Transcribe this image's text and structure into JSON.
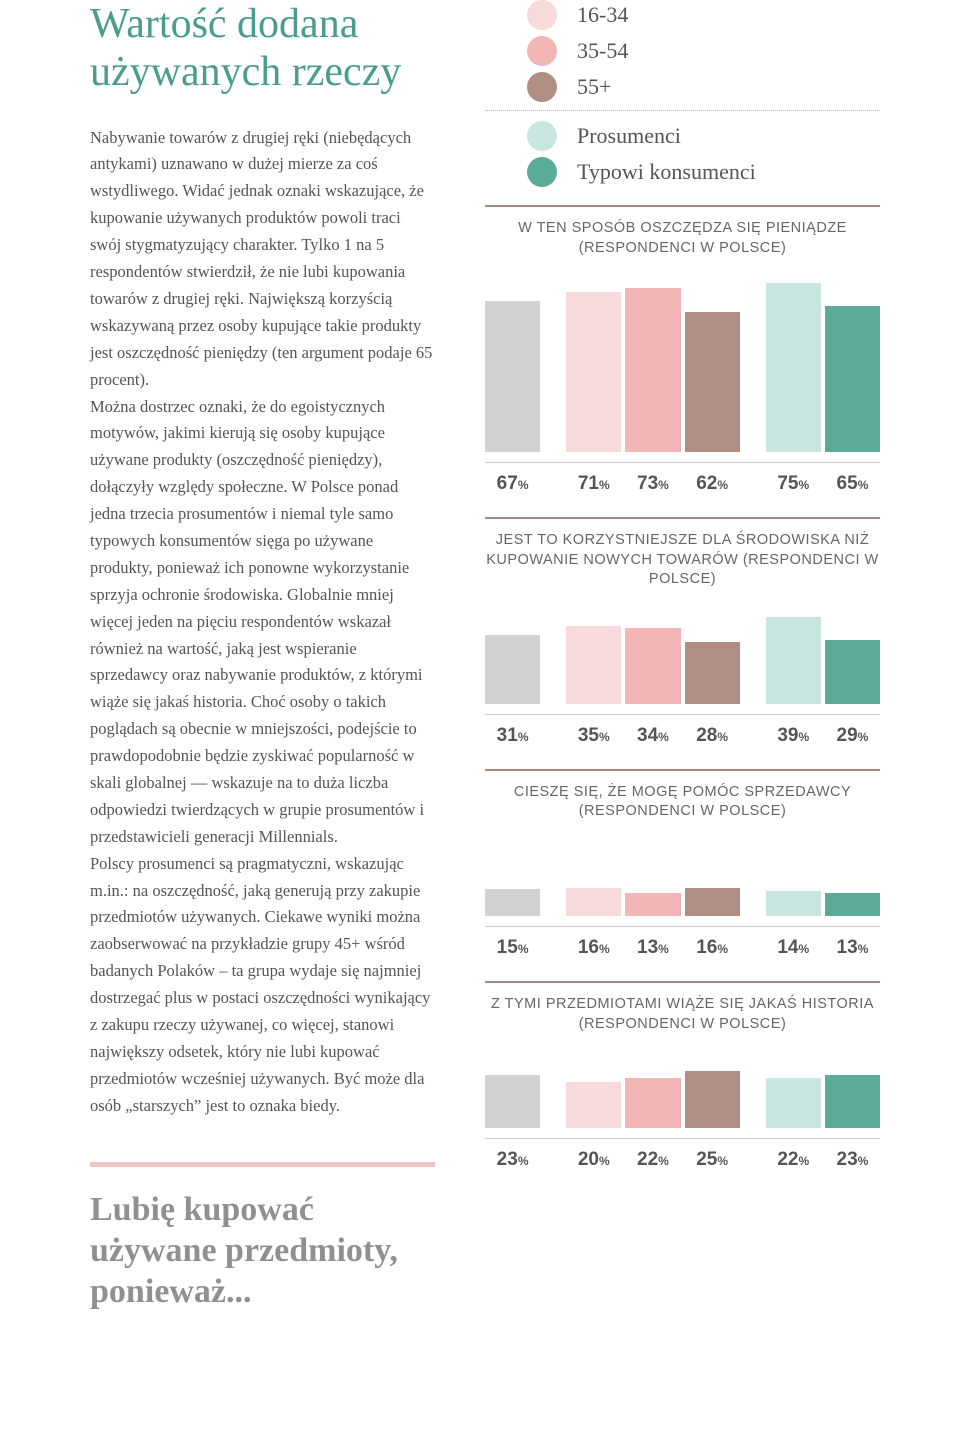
{
  "colors": {
    "overall": "#d4d2d0",
    "age_16_34": "#f9dada",
    "age_35_54": "#f2b6b6",
    "age_55_plus": "#b18e83",
    "prosumers": "#c9e5df",
    "typical": "#5bab99",
    "title": "#4a9d8e",
    "callout_bar": "#efc5c5"
  },
  "legend": {
    "age_16_34": "16-34",
    "age_35_54": "35-54",
    "age_55_plus": "55+",
    "prosumers": "Prosumenci",
    "typical": "Typowi konsumenci"
  },
  "title": "Wartość dodana używanych rzeczy",
  "body": "Nabywanie towarów z drugiej ręki (niebędących antykami) uznawano w dużej mierze za coś wstydliwego. Widać jednak oznaki wskazujące, że kupowanie używanych produktów powoli traci swój stygmatyzujący charakter. Tylko 1 na 5 respondentów stwierdził, że nie lubi kupowania towarów z drugiej ręki. Największą korzyścią wskazywaną przez osoby kupujące takie produkty jest oszczędność pieniędzy (ten argument podaje 65 procent).\nMożna dostrzec oznaki, że do egoistycznych motywów, jakimi kierują się osoby kupujące używane produkty (oszczędność pieniędzy), dołączyły względy społeczne. W Polsce ponad jedna trzecia prosumentów i niemal tyle samo typowych konsumentów sięga po używane produkty, ponieważ ich ponowne wykorzystanie sprzyja ochronie środowiska. Globalnie mniej więcej jeden na pięciu respondentów wskazał również na wartość, jaką jest wspieranie sprzedawcy oraz nabywanie produktów, z którymi wiąże się jakaś historia. Choć osoby o takich poglądach są obecnie w mniejszości, podejście to prawdopodobnie będzie zyskiwać popularność w skali globalnej — wskazuje na to duża liczba odpowiedzi twierdzących w grupie prosumentów i przedstawicieli generacji Millennials.\nPolscy prosumenci są pragmatyczni, wskazując m.in.: na oszczędność, jaką generują przy zakupie przedmiotów używanych. Ciekawe wyniki można zaobserwować na przykładzie grupy 45+ wśród badanych Polaków – ta grupa wydaje się najmniej dostrzegać plus w postaci oszczędności wynikający z zakupu rzeczy używanej, co więcej, stanowi największy odsetek, który nie lubi kupować przedmiotów wcześniej używanych. Być może dla osób „starszych” jest to oznaka biedy.",
  "callout": "Lubię kupować używane przedmioty, ponieważ...",
  "charts": [
    {
      "title": "W TEN SPOSÓB OSZCZĘDZA SIĘ PIENIĄDZE (RESPONDENCI W POLSCE)",
      "height_class": "",
      "scale_max": 80,
      "groups": [
        [
          {
            "v": 67,
            "c": "overall"
          }
        ],
        [
          {
            "v": 71,
            "c": "age_16_34"
          },
          {
            "v": 73,
            "c": "age_35_54"
          },
          {
            "v": 62,
            "c": "age_55_plus"
          }
        ],
        [
          {
            "v": 75,
            "c": "prosumers"
          },
          {
            "v": 65,
            "c": "typical"
          }
        ]
      ]
    },
    {
      "title": "JEST TO KORZYSTNIEJSZE DLA ŚRODOWISKA NIŻ KUPOWANIE NOWYCH TOWARÓW (RESPONDENCI W POLSCE)",
      "height_class": "medium",
      "scale_max": 45,
      "groups": [
        [
          {
            "v": 31,
            "c": "overall"
          }
        ],
        [
          {
            "v": 35,
            "c": "age_16_34"
          },
          {
            "v": 34,
            "c": "age_35_54"
          },
          {
            "v": 28,
            "c": "age_55_plus"
          }
        ],
        [
          {
            "v": 39,
            "c": "prosumers"
          },
          {
            "v": 29,
            "c": "typical"
          }
        ]
      ]
    },
    {
      "title": "CIESZĘ SIĘ, ŻE MOGĘ POMÓC SPRZEDAWCY (RESPONDENCI W POLSCE)",
      "height_class": "short",
      "scale_max": 45,
      "groups": [
        [
          {
            "v": 15,
            "c": "overall"
          }
        ],
        [
          {
            "v": 16,
            "c": "age_16_34"
          },
          {
            "v": 13,
            "c": "age_35_54"
          },
          {
            "v": 16,
            "c": "age_55_plus"
          }
        ],
        [
          {
            "v": 14,
            "c": "prosumers"
          },
          {
            "v": 13,
            "c": "typical"
          }
        ]
      ]
    },
    {
      "title": "Z TYMI PRZEDMIOTAMI WIĄŻE SIĘ JAKAŚ HISTORIA (RESPONDENCI W POLSCE)",
      "height_class": "short",
      "scale_max": 35,
      "groups": [
        [
          {
            "v": 23,
            "c": "overall"
          }
        ],
        [
          {
            "v": 20,
            "c": "age_16_34"
          },
          {
            "v": 22,
            "c": "age_35_54"
          },
          {
            "v": 25,
            "c": "age_55_plus"
          }
        ],
        [
          {
            "v": 22,
            "c": "prosumers"
          },
          {
            "v": 23,
            "c": "typical"
          }
        ]
      ]
    }
  ]
}
